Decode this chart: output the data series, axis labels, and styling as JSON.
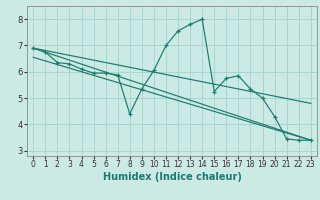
{
  "xlabel": "Humidex (Indice chaleur)",
  "background_color": "#cceae4",
  "grid_color": "#aad4cc",
  "line_color": "#1a7a6e",
  "xlim": [
    -0.5,
    23.5
  ],
  "ylim": [
    2.8,
    8.5
  ],
  "yticks": [
    3,
    4,
    5,
    6,
    7,
    8
  ],
  "xticks": [
    0,
    1,
    2,
    3,
    4,
    5,
    6,
    7,
    8,
    9,
    10,
    11,
    12,
    13,
    14,
    15,
    16,
    17,
    18,
    19,
    20,
    21,
    22,
    23
  ],
  "series1_x": [
    0,
    1,
    2,
    3,
    4,
    5,
    6,
    7,
    8,
    9,
    10,
    11,
    12,
    13,
    14,
    15,
    16,
    17,
    18,
    19,
    20,
    21,
    22,
    23
  ],
  "series1_y": [
    6.9,
    6.75,
    6.35,
    6.3,
    6.1,
    5.95,
    5.95,
    5.88,
    4.4,
    5.35,
    6.05,
    7.0,
    7.55,
    7.8,
    8.0,
    5.25,
    5.75,
    5.85,
    5.35,
    5.0,
    4.3,
    3.45,
    3.4,
    3.4
  ],
  "series2_x": [
    0,
    23
  ],
  "series2_y": [
    6.9,
    3.4
  ],
  "series3_x": [
    0,
    23
  ],
  "series3_y": [
    6.9,
    4.8
  ],
  "series4_x": [
    0,
    23
  ],
  "series4_y": [
    6.55,
    3.4
  ]
}
